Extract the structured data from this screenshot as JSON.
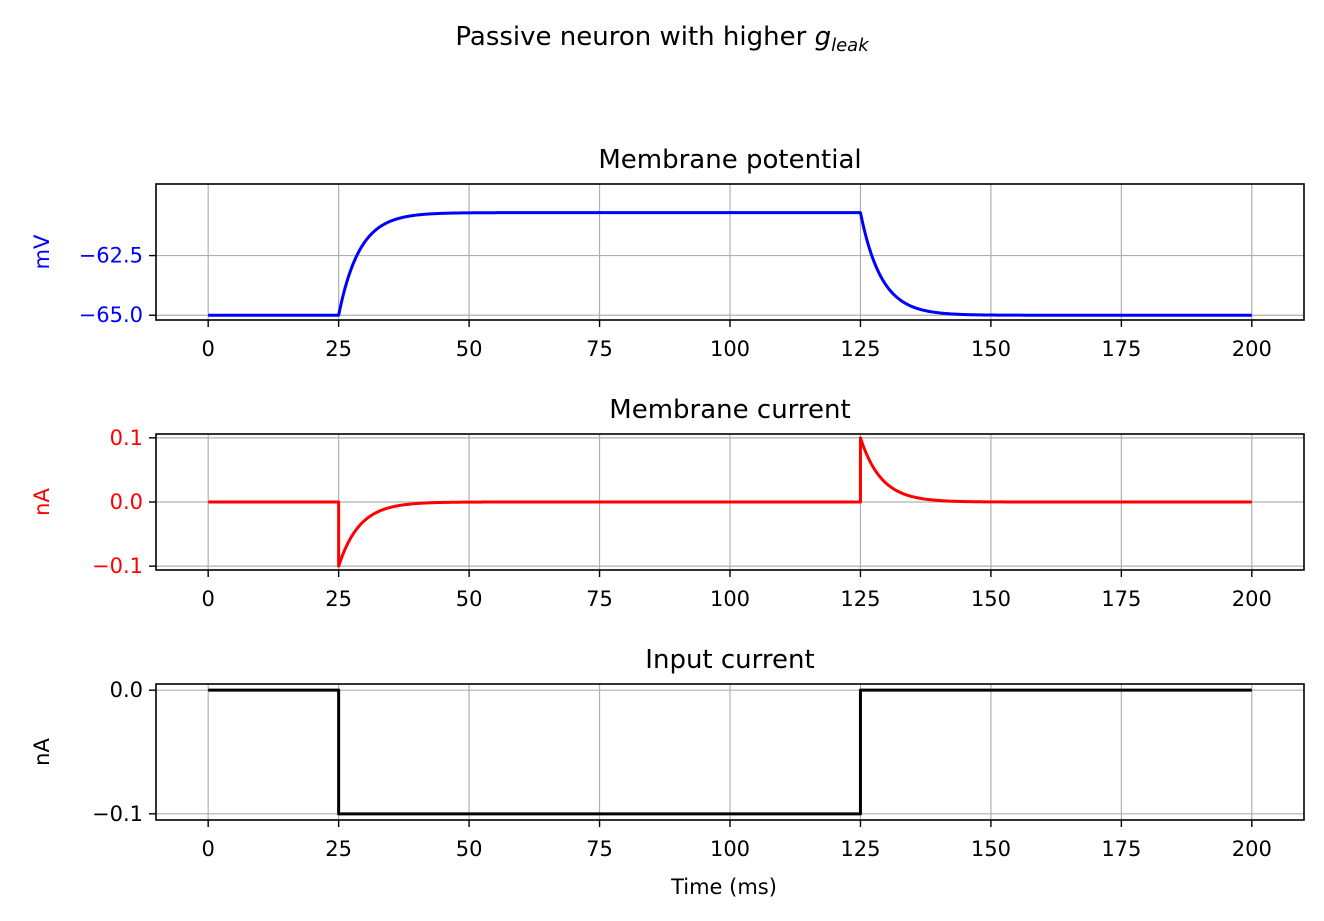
{
  "figure": {
    "suptitle_main": "Passive neuron with higher ",
    "suptitle_symbol": "g",
    "suptitle_sub": "leak"
  },
  "chart_data": [
    {
      "type": "line",
      "title": "Membrane potential",
      "xlabel": "",
      "ylabel": "mV",
      "label_color": "#0000ff",
      "line_color": "#0000ff",
      "xlim": [
        -10,
        210
      ],
      "ylim": [
        -65.2,
        -59.5
      ],
      "xticks": [
        0,
        25,
        50,
        75,
        100,
        125,
        150,
        175,
        200
      ],
      "yticks": [
        -65.0,
        -62.5
      ],
      "ytick_labels": [
        "−65.0",
        "−62.5"
      ],
      "grid": true,
      "signal": {
        "kind": "exp_step",
        "t_on": 25,
        "t_off": 125,
        "t_end": 200,
        "base": -65.0,
        "amp": 4.3,
        "tau": 4.0
      }
    },
    {
      "type": "line",
      "title": "Membrane current",
      "xlabel": "",
      "ylabel": "nA",
      "label_color": "#ff0000",
      "line_color": "#ff0000",
      "xlim": [
        -10,
        210
      ],
      "ylim": [
        -0.106,
        0.106
      ],
      "xticks": [
        0,
        25,
        50,
        75,
        100,
        125,
        150,
        175,
        200
      ],
      "yticks": [
        -0.1,
        0.0,
        0.1
      ],
      "ytick_labels": [
        "−0.1",
        "0.0",
        "0.1"
      ],
      "grid": true,
      "signal": {
        "kind": "exp_spikes",
        "t_on": 25,
        "t_off": 125,
        "t_end": 200,
        "base": 0.0,
        "amp": 0.1,
        "tau": 4.0
      }
    },
    {
      "type": "line",
      "title": "Input current",
      "xlabel": "Time (ms)",
      "ylabel": "nA",
      "label_color": "#000000",
      "line_color": "#000000",
      "xlim": [
        -10,
        210
      ],
      "ylim": [
        -0.105,
        0.005
      ],
      "xticks": [
        0,
        25,
        50,
        75,
        100,
        125,
        150,
        175,
        200
      ],
      "yticks": [
        -0.1,
        0.0
      ],
      "ytick_labels": [
        "−0.1",
        "0.0"
      ],
      "grid": true,
      "signal": {
        "kind": "square",
        "t_on": 25,
        "t_off": 125,
        "t_end": 200,
        "base": 0.0,
        "amp": -0.1
      }
    }
  ]
}
